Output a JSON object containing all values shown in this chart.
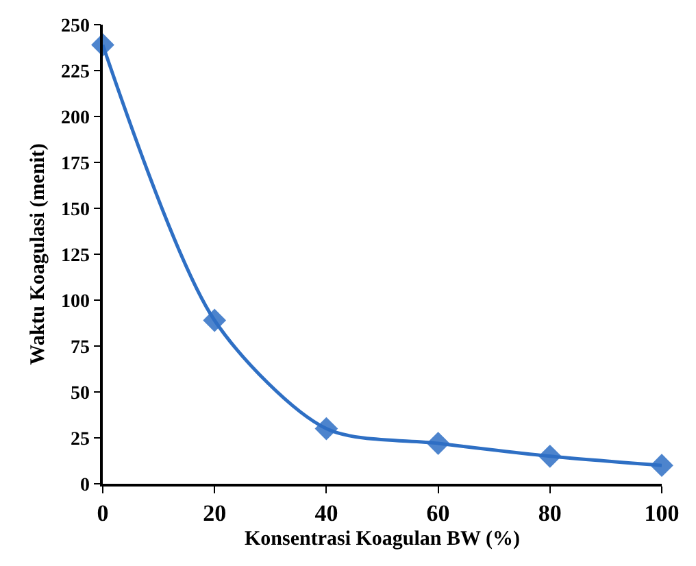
{
  "chart_data": {
    "type": "line",
    "xlabel": "Konsentrasi Koagulan BW (%)",
    "ylabel": "Waktu Koagulasi (menit)",
    "x": [
      0,
      20,
      40,
      60,
      80,
      100
    ],
    "series": [
      {
        "color": "#2e6fc4",
        "values": [
          239,
          89,
          30,
          22,
          15,
          10
        ]
      }
    ],
    "marker": "diamond",
    "line_style": "solid",
    "xlim": [
      0,
      100
    ],
    "xticks": [
      0,
      20,
      40,
      60,
      80,
      100
    ],
    "ylim": [
      0,
      250
    ],
    "yticks": [
      0,
      25,
      50,
      75,
      100,
      125,
      150,
      175,
      200,
      225,
      250
    ],
    "grid": false
  }
}
